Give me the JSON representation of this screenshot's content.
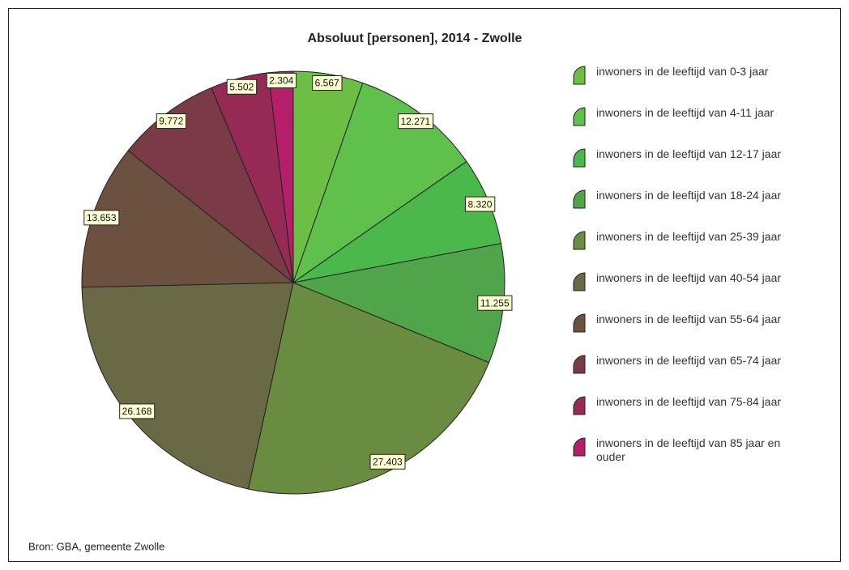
{
  "chart_data": {
    "type": "pie",
    "title": "Absoluut [personen], 2014 - Zwolle",
    "source": "Bron: GBA, gemeente Zwolle",
    "categories": [
      "inwoners in de leeftijd van 0-3 jaar",
      "inwoners in de leeftijd van 4-11 jaar",
      "inwoners in de leeftijd van 12-17 jaar",
      "inwoners in de leeftijd van 18-24 jaar",
      "inwoners in de leeftijd van 25-39 jaar",
      "inwoners in de leeftijd van 40-54 jaar",
      "inwoners in de leeftijd van 55-64 jaar",
      "inwoners in de leeftijd van 65-74 jaar",
      "inwoners in de leeftijd van 75-84 jaar",
      "inwoners in de leeftijd van 85 jaar en ouder"
    ],
    "values": [
      6567,
      12271,
      8320,
      11255,
      27403,
      26168,
      13653,
      9772,
      5502,
      2304
    ],
    "value_labels": [
      "6.567",
      "12.271",
      "8.320",
      "11.255",
      "27.403",
      "26.168",
      "13.653",
      "9.772",
      "5.502",
      "2.304"
    ],
    "colors": [
      "#6cbe45",
      "#5fc04b",
      "#4ab84b",
      "#50a54a",
      "#6a8c40",
      "#696a45",
      "#6c5140",
      "#7a3b46",
      "#952a55",
      "#b71e69"
    ]
  }
}
